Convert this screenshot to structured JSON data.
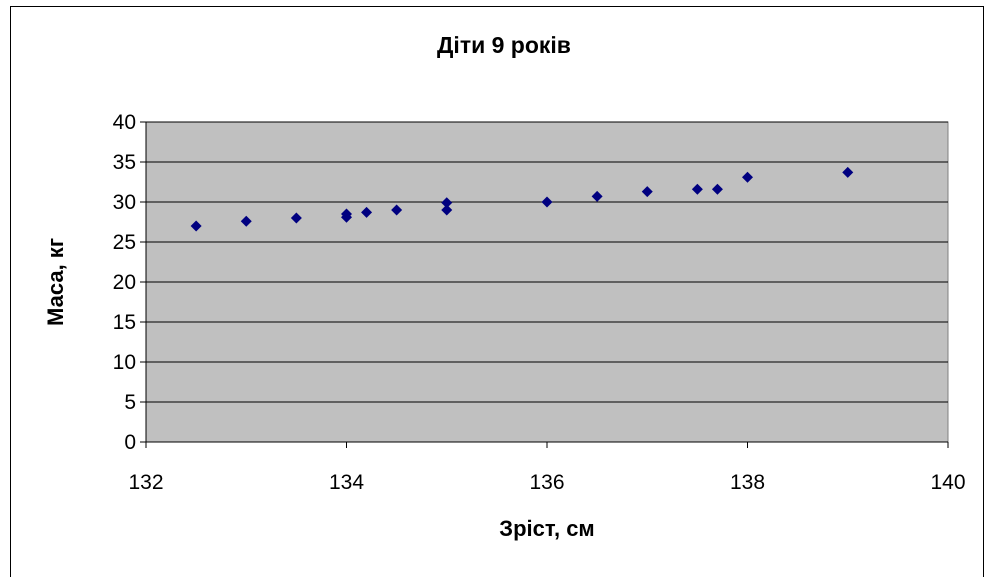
{
  "chart_data": {
    "type": "scatter",
    "title": "Діти 9 років",
    "xlabel": "Зріст, см",
    "ylabel": "Маса, кг",
    "xlim": [
      132,
      140
    ],
    "ylim": [
      0,
      40
    ],
    "x_ticks": [
      "132",
      "134",
      "136",
      "138",
      "140"
    ],
    "y_ticks": [
      "0",
      "5",
      "10",
      "15",
      "20",
      "25",
      "30",
      "35",
      "40"
    ],
    "grid": "horizontal",
    "legend": "none",
    "plot_background": "#c0c0c0",
    "marker_color": "#000080",
    "marker": "diamond",
    "series": [
      {
        "points": [
          {
            "x": 132.5,
            "y": 27.0
          },
          {
            "x": 133.0,
            "y": 27.6
          },
          {
            "x": 133.5,
            "y": 28.0
          },
          {
            "x": 134.0,
            "y": 28.1
          },
          {
            "x": 134.0,
            "y": 28.5
          },
          {
            "x": 134.2,
            "y": 28.7
          },
          {
            "x": 134.5,
            "y": 29.0
          },
          {
            "x": 135.0,
            "y": 29.0
          },
          {
            "x": 135.0,
            "y": 29.9
          },
          {
            "x": 136.0,
            "y": 30.0
          },
          {
            "x": 136.5,
            "y": 30.7
          },
          {
            "x": 137.0,
            "y": 31.3
          },
          {
            "x": 137.5,
            "y": 31.6
          },
          {
            "x": 137.7,
            "y": 31.6
          },
          {
            "x": 138.0,
            "y": 33.1
          },
          {
            "x": 139.0,
            "y": 33.7
          }
        ]
      }
    ]
  }
}
